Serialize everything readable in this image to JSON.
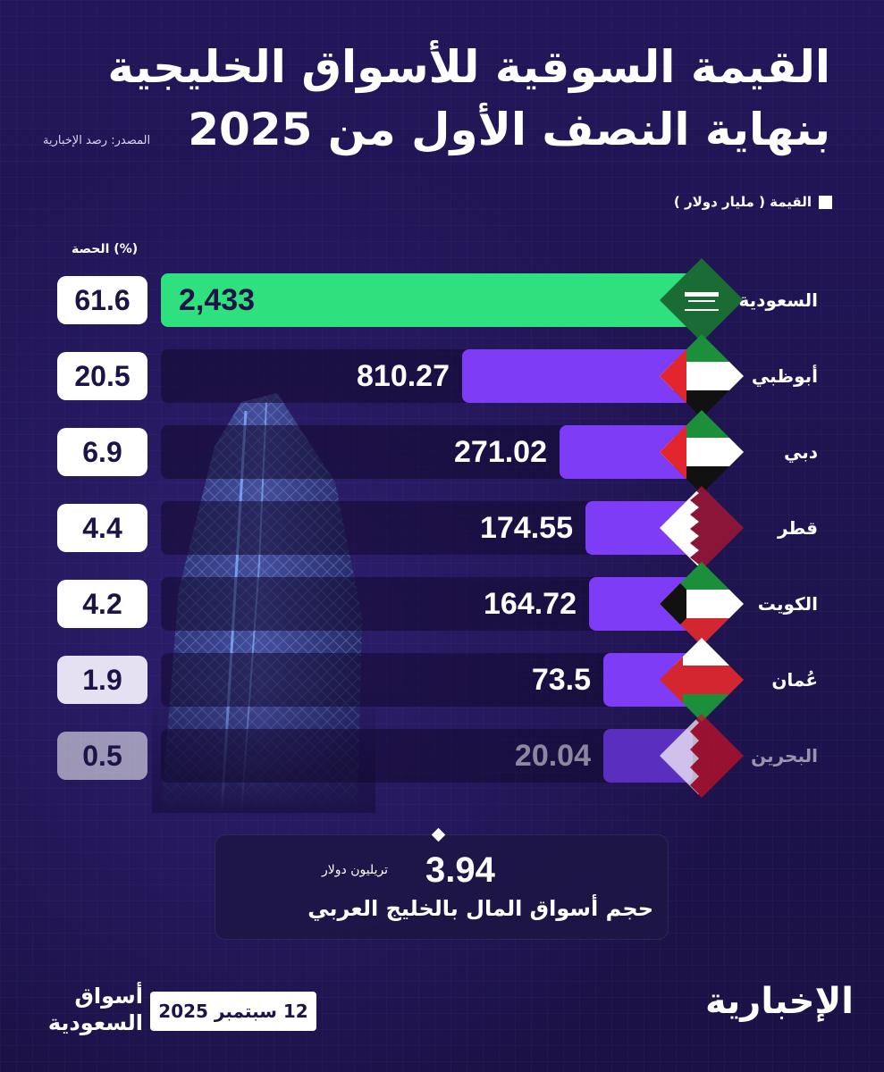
{
  "title_line1": "القيمة السوقية للأسواق الخليجية",
  "title_line2": "بنهاية النصف الأول من 2025",
  "source": "المصدر: رصد الإخبارية",
  "legend_label": "القيمة ( مليار دولار )",
  "share_header": "الحصة (%)",
  "total": {
    "value": "3.94",
    "unit": "تريليون دولار",
    "caption": "حجم أسواق المال بالخليج العربي"
  },
  "date": "12 سبتمبر 2025",
  "section_name_line1": "أسواق",
  "section_name_line2": "السعودية",
  "logo": "الإخبارية",
  "colors": {
    "background": "#211553",
    "highlight_bar": "#2fe07e",
    "bar": "#7f3cf6",
    "text": "#ffffff"
  },
  "chart_data": {
    "type": "bar",
    "orientation": "horizontal",
    "title": "القيمة السوقية للأسواق الخليجية بنهاية النصف الأول من 2025",
    "categories": [
      "السعودية",
      "أبوظبي",
      "دبي",
      "قطر",
      "الكويت",
      "عُمان",
      "البحرين"
    ],
    "value_labels": [
      "2,433",
      "810.27",
      "271.02",
      "174.55",
      "164.72",
      "73.5",
      "20.04"
    ],
    "share_labels": [
      "61.6",
      "20.5",
      "6.9",
      "4.4",
      "4.2",
      "1.9",
      "0.5"
    ],
    "series": [
      {
        "name": "القيمة ( مليار دولار )",
        "values": [
          2433,
          810.27,
          271.02,
          174.55,
          164.72,
          73.5,
          20.04
        ]
      },
      {
        "name": "الحصة (%)",
        "values": [
          61.6,
          20.5,
          6.9,
          4.4,
          4.2,
          1.9,
          0.5
        ]
      }
    ],
    "flags": [
      "saudi-flag-icon",
      "uae-flag-icon",
      "uae-flag-icon",
      "qatar-flag-icon",
      "kuwait-flag-icon",
      "oman-flag-icon",
      "bahrain-flag-icon"
    ],
    "legend": "top-right",
    "grid": false
  }
}
